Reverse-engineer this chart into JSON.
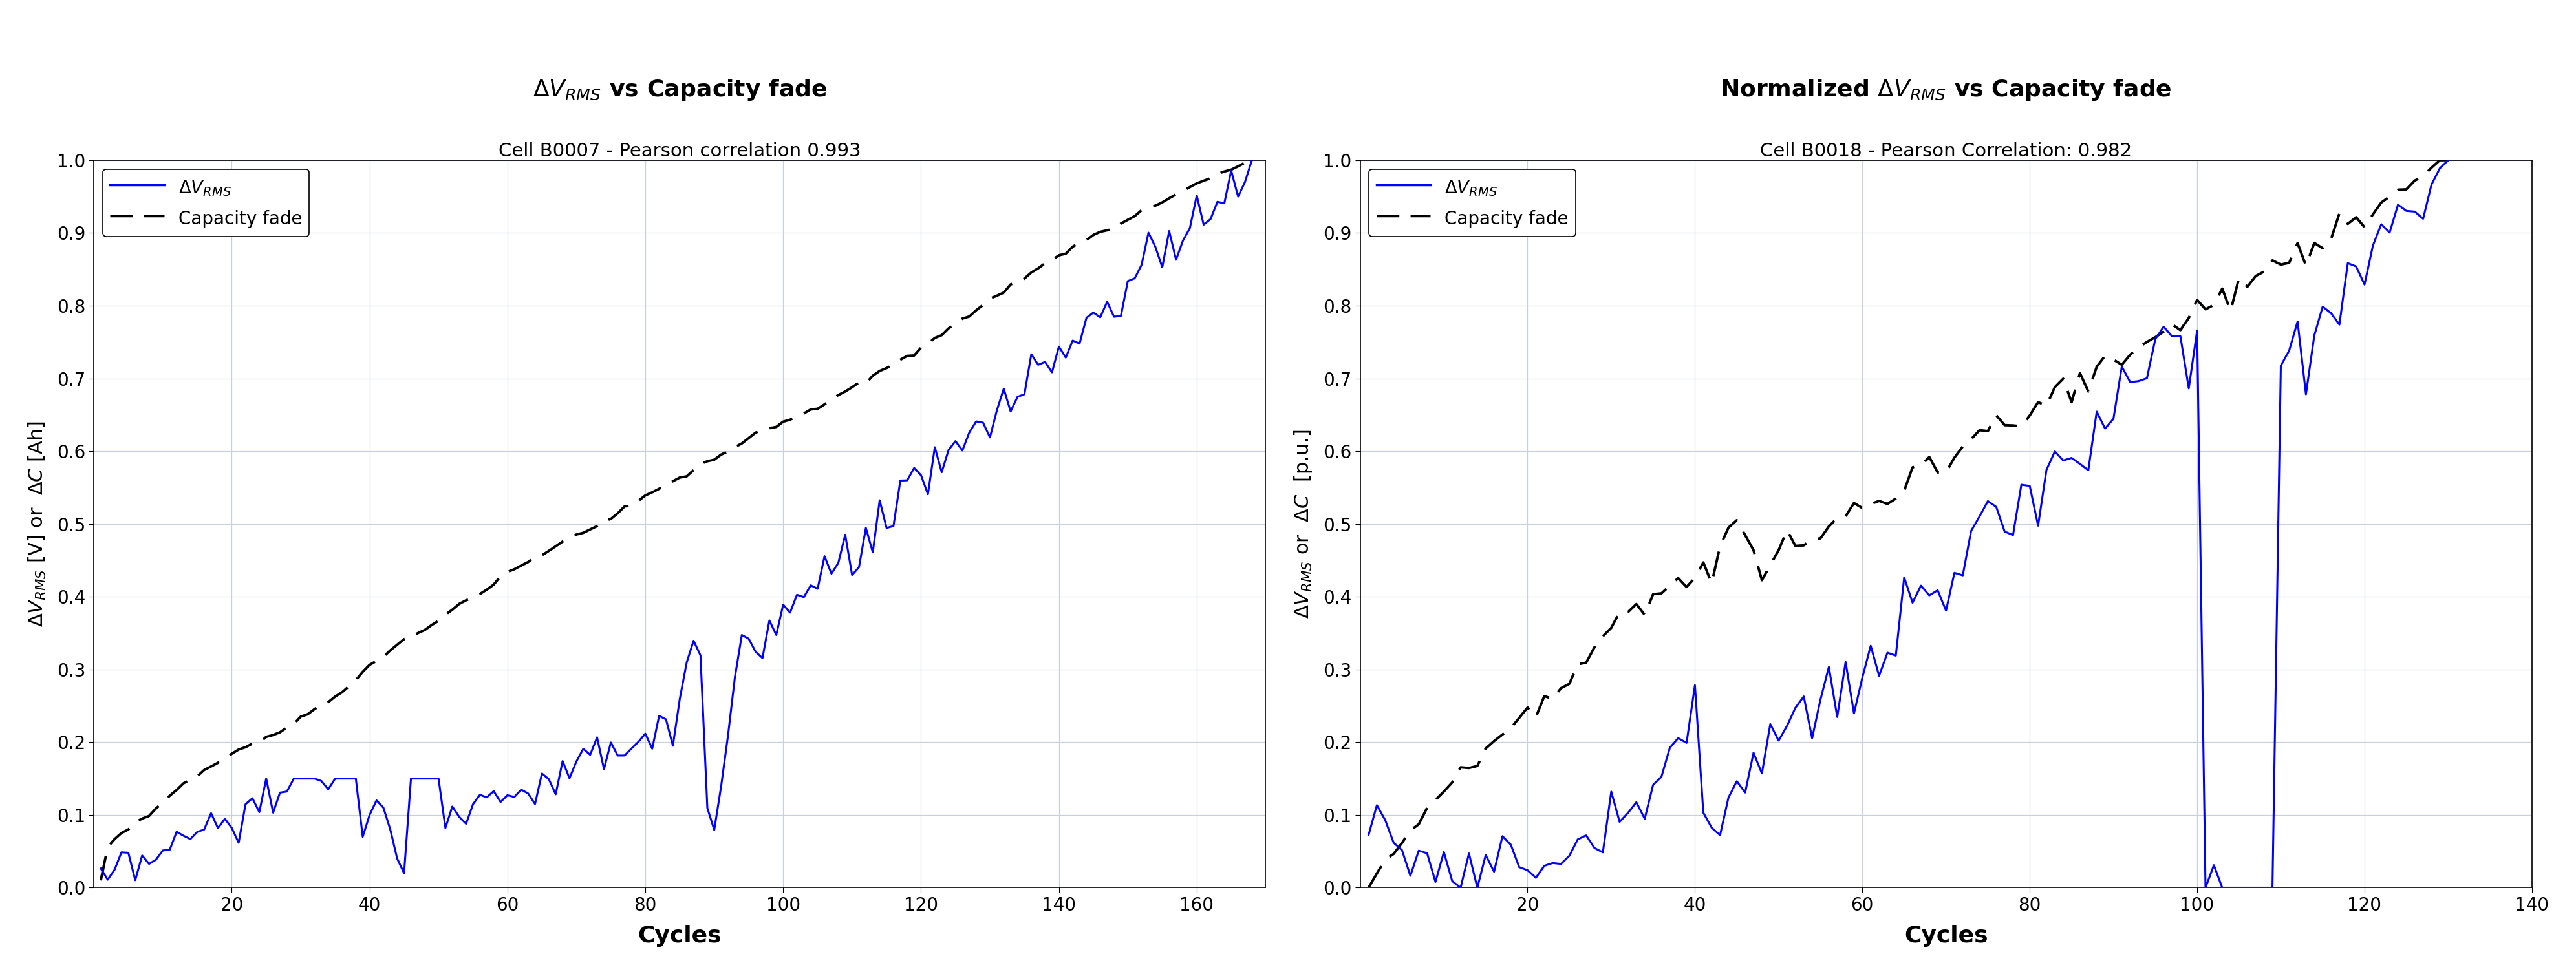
{
  "fig_width": 39.84,
  "fig_height": 15.07,
  "bg_color": "#ffffff",
  "grid_color": "#c8d0e0",
  "plot1": {
    "title": "$\\Delta V_{RMS}$ vs Capacity fade",
    "subtitle": "Cell B0007 - Pearson correlation 0.993",
    "xlabel": "Cycles",
    "ylabel": "$\\Delta V_{RMS}$ [V] or  $\\Delta C$ [Ah]",
    "xlim": [
      0,
      170
    ],
    "ylim": [
      0,
      1.0
    ],
    "xticks": [
      20,
      40,
      60,
      80,
      100,
      120,
      140,
      160
    ],
    "yticks": [
      0,
      0.1,
      0.2,
      0.3,
      0.4,
      0.5,
      0.6,
      0.7,
      0.8,
      0.9,
      1.0
    ],
    "legend_labels": [
      "$\\Delta V_{RMS}$",
      "Capacity fade"
    ],
    "line1_color": "#0000ff",
    "line2_color": "#000000"
  },
  "plot2": {
    "title": "Normalized $\\Delta V_{RMS}$ vs Capacity fade",
    "subtitle": "Cell B0018 - Pearson Correlation: 0.982",
    "xlabel": "Cycles",
    "ylabel": "$\\Delta V_{RMS}$ or  $\\Delta C$  [p.u.]",
    "xlim": [
      0,
      140
    ],
    "ylim": [
      0,
      1.0
    ],
    "xticks": [
      20,
      40,
      60,
      80,
      100,
      120,
      140
    ],
    "yticks": [
      0,
      0.1,
      0.2,
      0.3,
      0.4,
      0.5,
      0.6,
      0.7,
      0.8,
      0.9,
      1.0
    ],
    "legend_labels": [
      "$\\Delta V_{RMS}$",
      "Capacity fade"
    ],
    "line1_color": "#0000ff",
    "line2_color": "#000000"
  }
}
